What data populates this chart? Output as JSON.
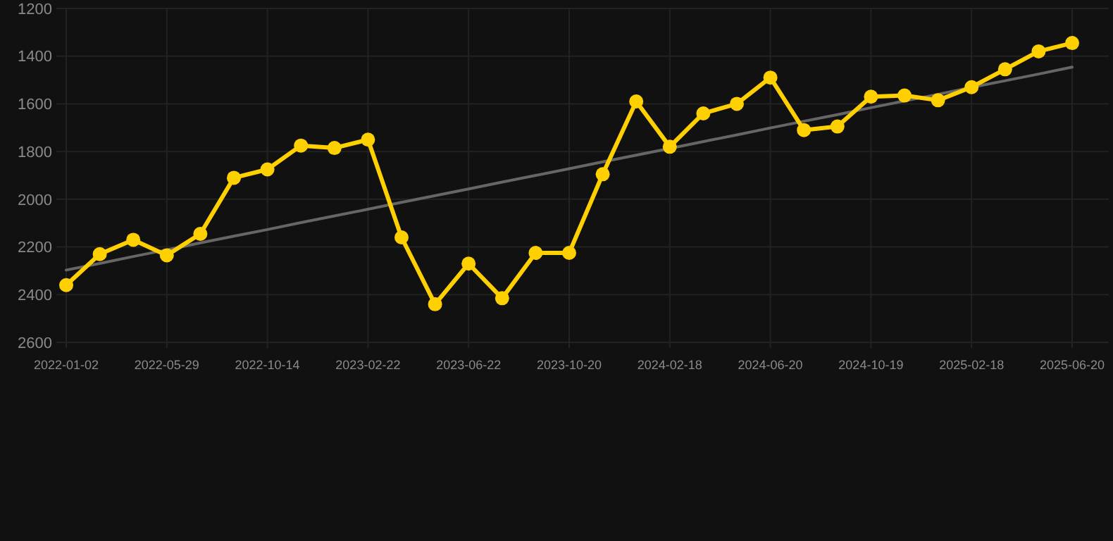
{
  "chart_data": {
    "type": "line",
    "categories": [
      "2022-01-02",
      null,
      null,
      "2022-05-29",
      null,
      null,
      "2022-10-14",
      null,
      null,
      "2023-02-22",
      null,
      null,
      "2023-06-22",
      null,
      null,
      "2023-10-20",
      null,
      null,
      "2024-02-18",
      null,
      null,
      "2024-06-20",
      null,
      null,
      "2024-10-19",
      null,
      null,
      "2025-02-18",
      null,
      null,
      "2025-06-20"
    ],
    "series": [
      {
        "color": "#ffd000",
        "marker": "circle",
        "values": [
          2360,
          2230,
          2170,
          2235,
          2145,
          1910,
          1875,
          1775,
          1785,
          1750,
          2160,
          2440,
          2270,
          2415,
          2225,
          2225,
          1895,
          1590,
          1780,
          1640,
          1600,
          1490,
          1710,
          1695,
          1570,
          1565,
          1585,
          1530,
          1455,
          1380,
          1345
        ]
      },
      {
        "color": "#666666",
        "marker": "none",
        "values": [
          2297,
          2269,
          2240,
          2212,
          2183,
          2155,
          2127,
          2098,
          2070,
          2042,
          2013,
          1985,
          1957,
          1928,
          1900,
          1872,
          1843,
          1815,
          1787,
          1758,
          1730,
          1701,
          1673,
          1645,
          1616,
          1588,
          1560,
          1531,
          1503,
          1475,
          1446
        ]
      }
    ],
    "ylim": [
      2600,
      1200
    ],
    "yticks": [
      1200,
      1400,
      1600,
      1800,
      2000,
      2200,
      2400,
      2600
    ],
    "grid": true
  }
}
